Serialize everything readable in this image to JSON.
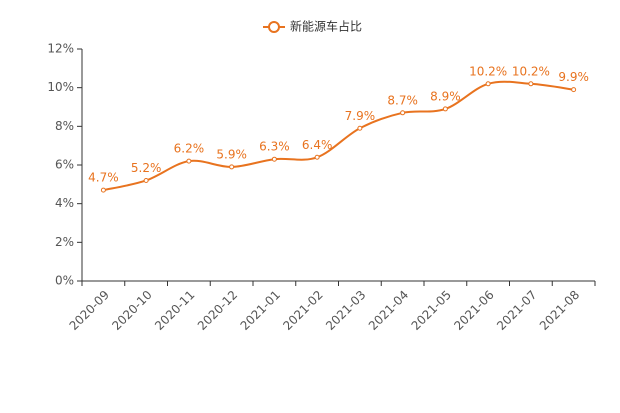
{
  "chart_data": {
    "type": "line",
    "categories": [
      "2020-09",
      "2020-10",
      "2020-11",
      "2020-12",
      "2021-01",
      "2021-02",
      "2021-03",
      "2021-04",
      "2021-05",
      "2021-06",
      "2021-07",
      "2021-08"
    ],
    "series": [
      {
        "name": "新能源车占比",
        "color": "#e8731f",
        "values": [
          4.7,
          5.2,
          6.2,
          5.9,
          6.3,
          6.4,
          7.9,
          8.7,
          8.9,
          10.2,
          10.2,
          9.9
        ],
        "value_labels": [
          "4.7%",
          "5.2%",
          "6.2%",
          "5.9%",
          "6.3%",
          "6.4%",
          "7.9%",
          "8.7%",
          "8.9%",
          "10.2%",
          "10.2%",
          "9.9%"
        ]
      }
    ],
    "ylim": [
      0,
      12
    ],
    "yticks": [
      {
        "value": 0,
        "label": "0%"
      },
      {
        "value": 2,
        "label": "2%"
      },
      {
        "value": 4,
        "label": "4%"
      },
      {
        "value": 6,
        "label": "6%"
      },
      {
        "value": 8,
        "label": "8%"
      },
      {
        "value": 10,
        "label": "10%"
      },
      {
        "value": 12,
        "label": "12%"
      }
    ],
    "grid": false,
    "smooth": true,
    "legend": "top"
  }
}
